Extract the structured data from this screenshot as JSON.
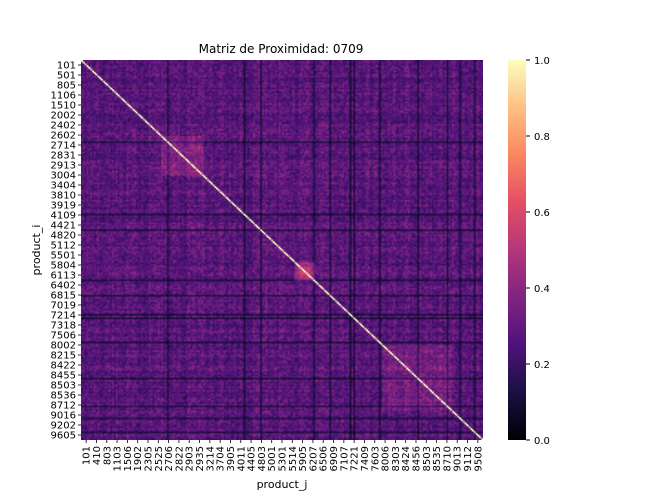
{
  "chart_data": {
    "type": "heatmap",
    "title": "Matriz de Proximidad: 0709",
    "xlabel": "product_j",
    "ylabel": "product_i",
    "y_tick_labels": [
      "101",
      "501",
      "805",
      "1106",
      "1510",
      "2002",
      "2402",
      "2602",
      "2714",
      "2831",
      "2913",
      "3004",
      "3404",
      "3810",
      "3919",
      "4109",
      "4421",
      "4820",
      "5112",
      "5501",
      "5804",
      "6113",
      "6402",
      "6815",
      "7019",
      "7214",
      "7318",
      "7506",
      "8002",
      "8215",
      "8422",
      "8455",
      "8503",
      "8536",
      "8712",
      "9016",
      "9202",
      "9605"
    ],
    "x_tick_labels": [
      "101",
      "410",
      "803",
      "1103",
      "1506",
      "1902",
      "2305",
      "2525",
      "2706",
      "2822",
      "2903",
      "2935",
      "3214",
      "3704",
      "3905",
      "4011",
      "4405",
      "4803",
      "5001",
      "5301",
      "5514",
      "5905",
      "6207",
      "6506",
      "6909",
      "7107",
      "7221",
      "7409",
      "7603",
      "8006",
      "8303",
      "8424",
      "8456",
      "8503",
      "8535",
      "8710",
      "9013",
      "9112",
      "9508"
    ],
    "colorbar": {
      "cmap": "magma",
      "range": [
        0.0,
        1.0
      ],
      "tick_labels": [
        "0.0",
        "0.2",
        "0.4",
        "0.6",
        "0.8",
        "1.0"
      ]
    },
    "grid": false,
    "diagonal_value": 1.0
  }
}
